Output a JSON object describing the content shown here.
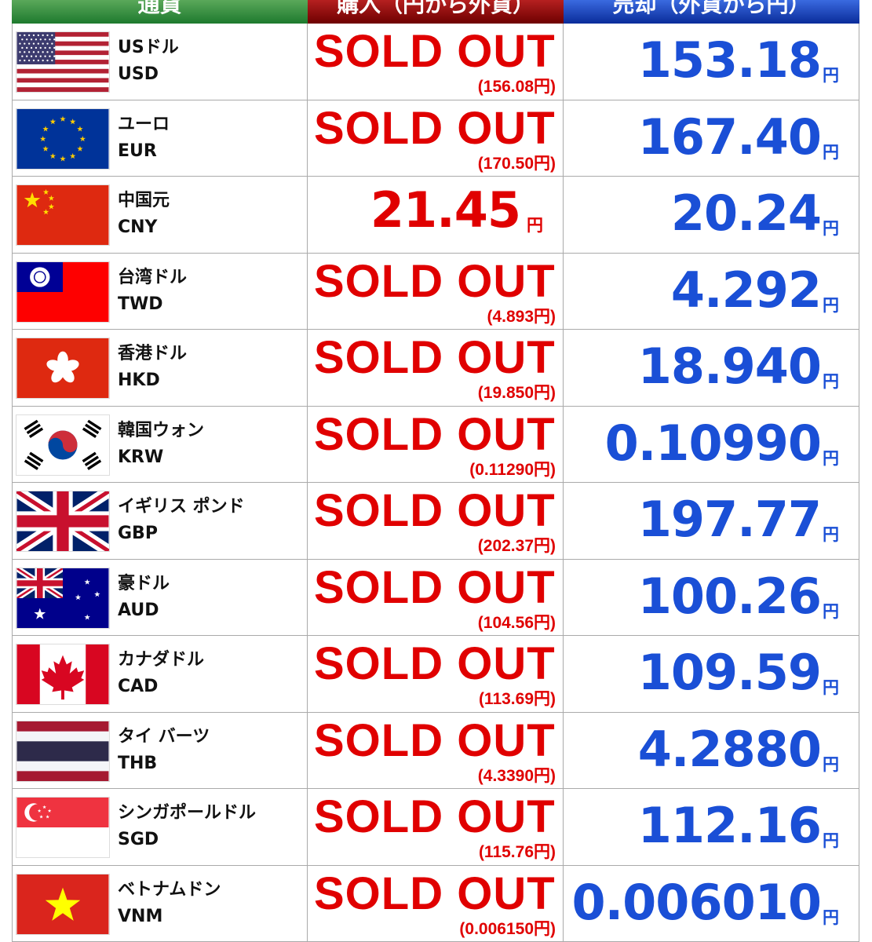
{
  "header": {
    "currency": "通貨",
    "buy": "購入（円から外貨）",
    "sell": "売却（外貨から円）"
  },
  "rows": [
    {
      "name": "USドル",
      "code": "USD",
      "buy": "SOLD OUT",
      "buy_ref": "(156.08円)",
      "sell": "153.18",
      "sell_unit": "円"
    },
    {
      "name": "ユーロ",
      "code": "EUR",
      "buy": "SOLD OUT",
      "buy_ref": "(170.50円)",
      "sell": "167.40",
      "sell_unit": "円"
    },
    {
      "name": "中国元",
      "code": "CNY",
      "buy": "21.45",
      "buy_unit": "円",
      "sell": "20.24",
      "sell_unit": "円"
    },
    {
      "name": "台湾ドル",
      "code": "TWD",
      "buy": "SOLD OUT",
      "buy_ref": "(4.893円)",
      "sell": "4.292",
      "sell_unit": "円"
    },
    {
      "name": "香港ドル",
      "code": "HKD",
      "buy": "SOLD OUT",
      "buy_ref": "(19.850円)",
      "sell": "18.940",
      "sell_unit": "円"
    },
    {
      "name": "韓国ウォン",
      "code": "KRW",
      "buy": "SOLD OUT",
      "buy_ref": "(0.11290円)",
      "sell": "0.10990",
      "sell_unit": "円"
    },
    {
      "name": "イギリス ポンド",
      "code": "GBP",
      "buy": "SOLD OUT",
      "buy_ref": "(202.37円)",
      "sell": "197.77",
      "sell_unit": "円"
    },
    {
      "name": "豪ドル",
      "code": "AUD",
      "buy": "SOLD OUT",
      "buy_ref": "(104.56円)",
      "sell": "100.26",
      "sell_unit": "円"
    },
    {
      "name": "カナダドル",
      "code": "CAD",
      "buy": "SOLD OUT",
      "buy_ref": "(113.69円)",
      "sell": "109.59",
      "sell_unit": "円"
    },
    {
      "name": "タイ バーツ",
      "code": "THB",
      "buy": "SOLD OUT",
      "buy_ref": "(4.3390円)",
      "sell": "4.2880",
      "sell_unit": "円"
    },
    {
      "name": "シンガポールドル",
      "code": "SGD",
      "buy": "SOLD OUT",
      "buy_ref": "(115.76円)",
      "sell": "112.16",
      "sell_unit": "円"
    },
    {
      "name": "ベトナムドン",
      "code": "VNM",
      "buy": "SOLD OUT",
      "buy_ref": "(0.006150円)",
      "sell": "0.006010",
      "sell_unit": "円"
    }
  ]
}
